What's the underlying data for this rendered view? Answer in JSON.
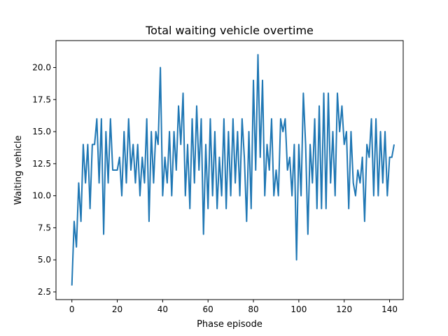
{
  "chart_data": {
    "type": "line",
    "title": "Total waiting vehicle overtime",
    "xlabel": "Phase episode",
    "ylabel": "Waiting vehicle",
    "xlim": [
      -7,
      146
    ],
    "ylim": [
      1.9,
      22.1
    ],
    "xticks": [
      0,
      20,
      40,
      60,
      80,
      100,
      120,
      140
    ],
    "yticks": [
      2.5,
      5.0,
      7.5,
      10.0,
      12.5,
      15.0,
      17.5,
      20.0
    ],
    "xtick_labels": [
      "0",
      "20",
      "40",
      "60",
      "80",
      "100",
      "120",
      "140"
    ],
    "ytick_labels": [
      "2.5",
      "5.0",
      "7.5",
      "10.0",
      "12.5",
      "15.0",
      "17.5",
      "20.0"
    ],
    "grid": false,
    "line_color": "#1f77b4",
    "series": [
      {
        "values": [
          3,
          8,
          6,
          11,
          8,
          14,
          11,
          14,
          9,
          14,
          14,
          16,
          11,
          16,
          7,
          15,
          11,
          16,
          12,
          12,
          12,
          13,
          10,
          15,
          11,
          16,
          12,
          14,
          11,
          14,
          10,
          13,
          11,
          16,
          8,
          15,
          11,
          15,
          14,
          20,
          10,
          13,
          11,
          15,
          10,
          15,
          12,
          17,
          14,
          18,
          10,
          14,
          9,
          16,
          11,
          17,
          12,
          16,
          7,
          14,
          9,
          16,
          10,
          15,
          9,
          13,
          10,
          16,
          9,
          15,
          10,
          16,
          11,
          15,
          10,
          16,
          13,
          8,
          15,
          9,
          19,
          12,
          21,
          13,
          19,
          10,
          14,
          12,
          16,
          10,
          12,
          10,
          16,
          15,
          16,
          12,
          13,
          10,
          14,
          5,
          14,
          10,
          18,
          14,
          7,
          14,
          11,
          16,
          9,
          17,
          9,
          18,
          9,
          18,
          11,
          15,
          10,
          18,
          15,
          17,
          14,
          15,
          9,
          15,
          11,
          10,
          12,
          11,
          13,
          8,
          14,
          13,
          16,
          10,
          16,
          10,
          15,
          11,
          15,
          10,
          13,
          13,
          14
        ]
      }
    ]
  }
}
